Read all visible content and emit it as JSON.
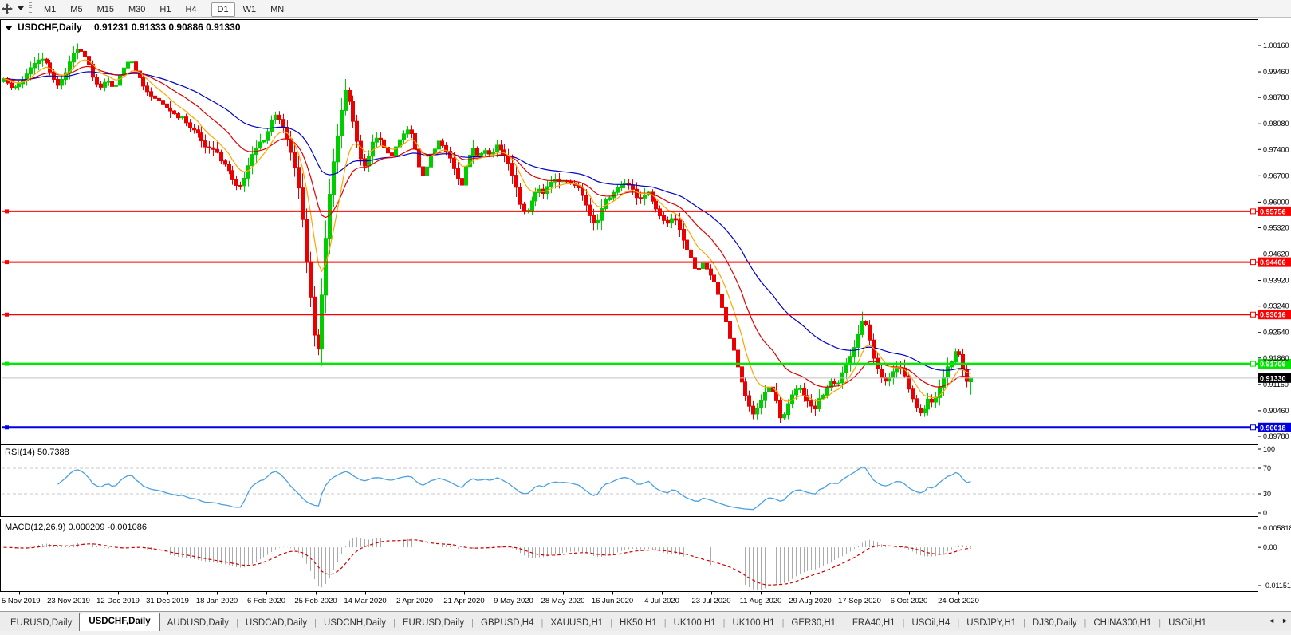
{
  "toolbar": {
    "chart_tool_icon": "pan-arrows",
    "timeframes": [
      {
        "label": "M1",
        "active": false
      },
      {
        "label": "M5",
        "active": false
      },
      {
        "label": "M15",
        "active": false
      },
      {
        "label": "M30",
        "active": false
      },
      {
        "label": "H1",
        "active": false
      },
      {
        "label": "H4",
        "active": false
      },
      {
        "label": "D1",
        "active": true
      },
      {
        "label": "W1",
        "active": false
      },
      {
        "label": "MN",
        "active": false
      }
    ]
  },
  "title": {
    "symbol": "USDCHF,Daily",
    "ohlc": "0.91231 0.91333 0.90886 0.91330"
  },
  "tab_bar": {
    "tabs": [
      {
        "label": "EURUSD,Daily",
        "active": false
      },
      {
        "label": "USDCHF,Daily",
        "active": true
      },
      {
        "label": "AUDUSD,Daily",
        "active": false
      },
      {
        "label": "USDCAD,Daily",
        "active": false
      },
      {
        "label": "USDCNH,Daily",
        "active": false
      },
      {
        "label": "EURUSD,Daily",
        "active": false
      },
      {
        "label": "GBPUSD,H4",
        "active": false
      },
      {
        "label": "XAUUSD,H1",
        "active": false
      },
      {
        "label": "HK50,H1",
        "active": false
      },
      {
        "label": "UK100,H1",
        "active": false
      },
      {
        "label": "UK100,H1",
        "active": false
      },
      {
        "label": "GER30,H1",
        "active": false
      },
      {
        "label": "FRA40,H1",
        "active": false
      },
      {
        "label": "USOil,H4",
        "active": false
      },
      {
        "label": "USDJPY,H1",
        "active": false
      },
      {
        "label": "DJ30,Daily",
        "active": false
      },
      {
        "label": "CHINA300,H1",
        "active": false
      },
      {
        "label": "USOil,H1",
        "active": false
      }
    ],
    "scroll_left": "◄",
    "scroll_right": "►"
  },
  "chart_data": {
    "type": "candlestick",
    "symbol": "USDCHF",
    "timeframe": "Daily",
    "ohlc_current": {
      "open": 0.91231,
      "high": 0.91333,
      "low": 0.90886,
      "close": 0.9133
    },
    "candle_count": 250,
    "colors": {
      "bull": "#00CC00",
      "bear": "#EA0000",
      "ma_fast": "#FFA500",
      "ma_mid": "#E00000",
      "ma_slow": "#0000C8",
      "rsi_line": "#4AA0E0",
      "macd_hist": "#ABABAB",
      "macd_signal": "#D00000",
      "current_price_line": "#C0C0C0",
      "current_price_label_bg": "#000000"
    },
    "y_axis": {
      "min": 0.8978,
      "max": 1.0016,
      "ticks": [
        "1.00160",
        "0.99460",
        "0.98780",
        "0.98080",
        "0.97400",
        "0.96700",
        "0.96000",
        "0.95320",
        "0.94620",
        "0.93920",
        "0.93240",
        "0.92540",
        "0.91860",
        "0.91160",
        "0.90460",
        "0.89780"
      ]
    },
    "x_axis": {
      "dates": [
        "5 Nov 2019",
        "23 Nov 2019",
        "12 Dec 2019",
        "31 Dec 2019",
        "18 Jan 2020",
        "6 Feb 2020",
        "25 Feb 2020",
        "14 Mar 2020",
        "2 Apr 2020",
        "21 Apr 2020",
        "9 May 2020",
        "28 May 2020",
        "16 Jun 2020",
        "4 Jul 2020",
        "23 Jul 2020",
        "11 Aug 2020",
        "29 Aug 2020",
        "17 Sep 2020",
        "6 Oct 2020",
        "24 Oct 2020"
      ]
    },
    "hlines": [
      {
        "price": 0.95756,
        "label": "0.95756",
        "color": "#FF0000",
        "width": 2
      },
      {
        "price": 0.94406,
        "label": "0.94406",
        "color": "#FF0000",
        "width": 2
      },
      {
        "price": 0.93016,
        "label": "0.93016",
        "color": "#FF0000",
        "width": 2
      },
      {
        "price": 0.91706,
        "label": "0.91706",
        "color": "#00E600",
        "width": 3
      },
      {
        "price": 0.90018,
        "label": "0.90018",
        "color": "#0000E0",
        "width": 3
      }
    ],
    "current_price": {
      "value": 0.9133,
      "label": "0.91330"
    },
    "moving_averages": [
      {
        "period": 45,
        "color": "#0000C8"
      },
      {
        "period": 20,
        "color": "#E00000"
      },
      {
        "period": 8,
        "color": "#FFA500"
      }
    ],
    "indicators": [
      {
        "name": "RSI",
        "label": "RSI(14) 50.7388",
        "period": 14,
        "value": 50.7388,
        "levels": [
          70,
          30
        ],
        "scale": [
          "100",
          "70",
          "30",
          "0"
        ]
      },
      {
        "name": "MACD",
        "label": "MACD(12,26,9) 0.000209 -0.001086",
        "params": [
          12,
          26,
          9
        ],
        "values": [
          0.000209,
          -0.001086
        ],
        "scale": [
          "0.005818",
          "0.00",
          "-0.011514"
        ],
        "scale_max": 0.005818,
        "scale_min": -0.011514
      }
    ],
    "price_path": [
      [
        0,
        0.9935
      ],
      [
        12,
        0.9905
      ],
      [
        25,
        0.9922
      ],
      [
        38,
        0.996
      ],
      [
        50,
        0.9978
      ],
      [
        62,
        0.9952
      ],
      [
        72,
        0.9912
      ],
      [
        82,
        0.994
      ],
      [
        92,
        0.9992
      ],
      [
        100,
        1.0005
      ],
      [
        108,
        0.9985
      ],
      [
        118,
        0.9942
      ],
      [
        128,
        0.9905
      ],
      [
        138,
        0.9928
      ],
      [
        148,
        0.9898
      ],
      [
        158,
        0.9945
      ],
      [
        168,
        0.9972
      ],
      [
        178,
        0.995
      ],
      [
        188,
        0.9905
      ],
      [
        198,
        0.988
      ],
      [
        208,
        0.9868
      ],
      [
        218,
        0.9845
      ],
      [
        228,
        0.9828
      ],
      [
        238,
        0.9832
      ],
      [
        248,
        0.98
      ],
      [
        258,
        0.9788
      ],
      [
        268,
        0.9745
      ],
      [
        278,
        0.9738
      ],
      [
        288,
        0.972
      ],
      [
        298,
        0.97
      ],
      [
        306,
        0.966
      ],
      [
        314,
        0.9636
      ],
      [
        322,
        0.9665
      ],
      [
        330,
        0.9718
      ],
      [
        338,
        0.9742
      ],
      [
        346,
        0.9765
      ],
      [
        354,
        0.98
      ],
      [
        360,
        0.9838
      ],
      [
        366,
        0.9828
      ],
      [
        372,
        0.9805
      ],
      [
        378,
        0.9768
      ],
      [
        385,
        0.9718
      ],
      [
        392,
        0.966
      ],
      [
        398,
        0.9565
      ],
      [
        404,
        0.945
      ],
      [
        410,
        0.934
      ],
      [
        415,
        0.924
      ],
      [
        419,
        0.9195
      ],
      [
        424,
        0.933
      ],
      [
        429,
        0.948
      ],
      [
        434,
        0.96
      ],
      [
        440,
        0.97
      ],
      [
        446,
        0.9778
      ],
      [
        452,
        0.9855
      ],
      [
        457,
        0.99
      ],
      [
        462,
        0.9868
      ],
      [
        468,
        0.98
      ],
      [
        474,
        0.974
      ],
      [
        480,
        0.969
      ],
      [
        486,
        0.9715
      ],
      [
        492,
        0.9758
      ],
      [
        500,
        0.9772
      ],
      [
        508,
        0.974
      ],
      [
        515,
        0.9718
      ],
      [
        522,
        0.9748
      ],
      [
        530,
        0.9775
      ],
      [
        538,
        0.9795
      ],
      [
        545,
        0.978
      ],
      [
        552,
        0.9712
      ],
      [
        558,
        0.966
      ],
      [
        565,
        0.969
      ],
      [
        572,
        0.9735
      ],
      [
        580,
        0.9768
      ],
      [
        588,
        0.9748
      ],
      [
        596,
        0.9718
      ],
      [
        604,
        0.9672
      ],
      [
        611,
        0.964
      ],
      [
        618,
        0.9705
      ],
      [
        626,
        0.9738
      ],
      [
        634,
        0.973
      ],
      [
        642,
        0.9742
      ],
      [
        650,
        0.9726
      ],
      [
        658,
        0.9752
      ],
      [
        666,
        0.973
      ],
      [
        674,
        0.9698
      ],
      [
        682,
        0.9645
      ],
      [
        690,
        0.9595
      ],
      [
        697,
        0.9572
      ],
      [
        705,
        0.9608
      ],
      [
        713,
        0.964
      ],
      [
        720,
        0.9622
      ],
      [
        728,
        0.9648
      ],
      [
        736,
        0.9655
      ],
      [
        744,
        0.9645
      ],
      [
        752,
        0.9662
      ],
      [
        760,
        0.965
      ],
      [
        768,
        0.9638
      ],
      [
        776,
        0.9598
      ],
      [
        783,
        0.9558
      ],
      [
        790,
        0.9532
      ],
      [
        798,
        0.9578
      ],
      [
        806,
        0.9612
      ],
      [
        814,
        0.9632
      ],
      [
        822,
        0.9648
      ],
      [
        830,
        0.9652
      ],
      [
        838,
        0.9638
      ],
      [
        846,
        0.9602
      ],
      [
        854,
        0.9612
      ],
      [
        862,
        0.9622
      ],
      [
        870,
        0.9588
      ],
      [
        878,
        0.9558
      ],
      [
        886,
        0.9545
      ],
      [
        894,
        0.9562
      ],
      [
        902,
        0.9522
      ],
      [
        910,
        0.9475
      ],
      [
        918,
        0.9442
      ],
      [
        925,
        0.9422
      ],
      [
        932,
        0.9442
      ],
      [
        940,
        0.9418
      ],
      [
        948,
        0.9388
      ],
      [
        955,
        0.9342
      ],
      [
        962,
        0.9292
      ],
      [
        970,
        0.9222
      ],
      [
        978,
        0.9178
      ],
      [
        985,
        0.9122
      ],
      [
        992,
        0.9072
      ],
      [
        1000,
        0.9038
      ],
      [
        1008,
        0.9062
      ],
      [
        1015,
        0.9092
      ],
      [
        1022,
        0.9108
      ],
      [
        1030,
        0.9072
      ],
      [
        1038,
        0.9022
      ],
      [
        1045,
        0.9062
      ],
      [
        1052,
        0.9092
      ],
      [
        1060,
        0.9112
      ],
      [
        1068,
        0.9082
      ],
      [
        1075,
        0.9062
      ],
      [
        1082,
        0.9042
      ],
      [
        1090,
        0.9082
      ],
      [
        1098,
        0.9112
      ],
      [
        1105,
        0.9132
      ],
      [
        1112,
        0.9112
      ],
      [
        1120,
        0.9152
      ],
      [
        1128,
        0.9182
      ],
      [
        1135,
        0.9212
      ],
      [
        1142,
        0.9258
      ],
      [
        1148,
        0.9296
      ],
      [
        1154,
        0.9252
      ],
      [
        1160,
        0.9192
      ],
      [
        1167,
        0.9152
      ],
      [
        1174,
        0.9122
      ],
      [
        1181,
        0.9132
      ],
      [
        1188,
        0.9152
      ],
      [
        1195,
        0.9162
      ],
      [
        1202,
        0.9132
      ],
      [
        1209,
        0.9102
      ],
      [
        1216,
        0.9062
      ],
      [
        1222,
        0.9042
      ],
      [
        1228,
        0.9052
      ],
      [
        1234,
        0.9082
      ],
      [
        1240,
        0.9062
      ],
      [
        1246,
        0.9092
      ],
      [
        1252,
        0.9122
      ],
      [
        1258,
        0.9152
      ],
      [
        1264,
        0.9182
      ],
      [
        1270,
        0.9212
      ],
      [
        1276,
        0.9195
      ],
      [
        1283,
        0.9123
      ],
      [
        1290,
        0.9133
      ]
    ]
  }
}
